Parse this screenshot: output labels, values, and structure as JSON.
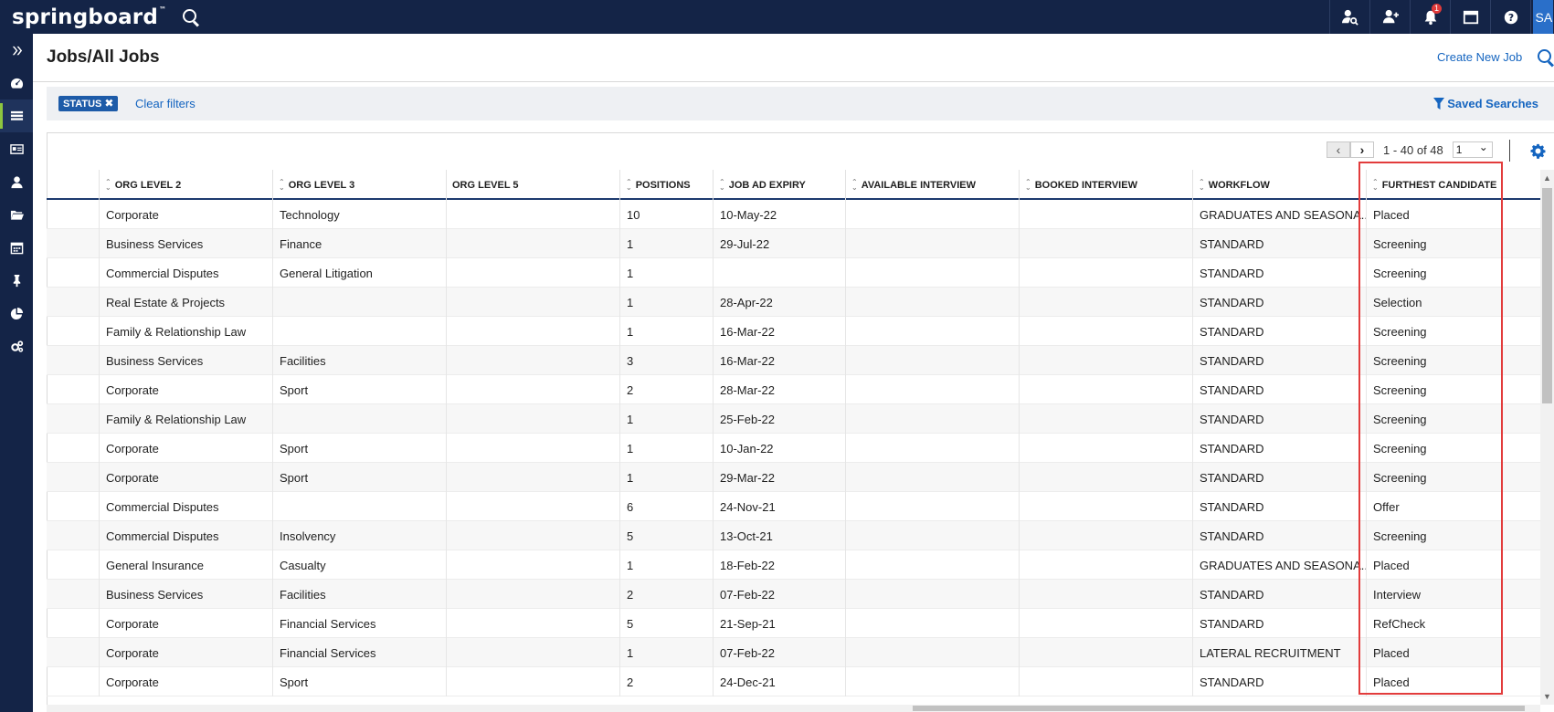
{
  "app": {
    "logo": "springboard",
    "logo_mark": "™",
    "avatar_initials": "SA",
    "notification_count": "1"
  },
  "header": {
    "title": "Jobs/All Jobs",
    "create_label": "Create New Job"
  },
  "filters": {
    "chip_label": "STATUS",
    "chip_remove": "✖",
    "clear_label": "Clear filters",
    "saved_label": "Saved Searches"
  },
  "pager": {
    "prev": "‹",
    "next": "›",
    "info": "1 - 40 of 48",
    "page": "1"
  },
  "columns": [
    "",
    "ORG LEVEL 2",
    "ORG LEVEL 3",
    "ORG LEVEL 5",
    "POSITIONS",
    "JOB AD EXPIRY",
    "AVAILABLE INTERVIEW",
    "BOOKED INTERVIEW",
    "WORKFLOW",
    "FURTHEST CANDIDATE"
  ],
  "rows": [
    [
      "",
      "Corporate",
      "Technology",
      "",
      "10",
      "10-May-22",
      "",
      "",
      "GRADUATES AND SEASONA...",
      "Placed"
    ],
    [
      "",
      "Business Services",
      "Finance",
      "",
      "1",
      "29-Jul-22",
      "",
      "",
      "STANDARD",
      "Screening"
    ],
    [
      "",
      "Commercial Disputes",
      "General Litigation",
      "",
      "1",
      "",
      "",
      "",
      "STANDARD",
      "Screening"
    ],
    [
      "",
      "Real Estate & Projects",
      "",
      "",
      "1",
      "28-Apr-22",
      "",
      "",
      "STANDARD",
      "Selection"
    ],
    [
      "",
      "Family & Relationship Law",
      "",
      "",
      "1",
      "16-Mar-22",
      "",
      "",
      "STANDARD",
      "Screening"
    ],
    [
      "",
      "Business Services",
      "Facilities",
      "",
      "3",
      "16-Mar-22",
      "",
      "",
      "STANDARD",
      "Screening"
    ],
    [
      "",
      "Corporate",
      "Sport",
      "",
      "2",
      "28-Mar-22",
      "",
      "",
      "STANDARD",
      "Screening"
    ],
    [
      "",
      "Family & Relationship Law",
      "",
      "",
      "1",
      "25-Feb-22",
      "",
      "",
      "STANDARD",
      "Screening"
    ],
    [
      "",
      "Corporate",
      "Sport",
      "",
      "1",
      "10-Jan-22",
      "",
      "",
      "STANDARD",
      "Screening"
    ],
    [
      "",
      "Corporate",
      "Sport",
      "",
      "1",
      "29-Mar-22",
      "",
      "",
      "STANDARD",
      "Screening"
    ],
    [
      "",
      "Commercial Disputes",
      "",
      "",
      "6",
      "24-Nov-21",
      "",
      "",
      "STANDARD",
      "Offer"
    ],
    [
      "",
      "Commercial Disputes",
      "Insolvency",
      "",
      "5",
      "13-Oct-21",
      "",
      "",
      "STANDARD",
      "Screening"
    ],
    [
      "",
      "General Insurance",
      "Casualty",
      "",
      "1",
      "18-Feb-22",
      "",
      "",
      "GRADUATES AND SEASONA...",
      "Placed"
    ],
    [
      "",
      "Business Services",
      "Facilities",
      "",
      "2",
      "07-Feb-22",
      "",
      "",
      "STANDARD",
      "Interview"
    ],
    [
      "",
      "Corporate",
      "Financial Services",
      "",
      "5",
      "21-Sep-21",
      "",
      "",
      "STANDARD",
      "RefCheck"
    ],
    [
      "",
      "Corporate",
      "Financial Services",
      "",
      "1",
      "07-Feb-22",
      "",
      "",
      "LATERAL RECRUITMENT",
      "Placed"
    ],
    [
      "",
      "Corporate",
      "Sport",
      "",
      "2",
      "24-Dec-21",
      "",
      "",
      "STANDARD",
      "Placed"
    ]
  ],
  "colors": {
    "navy": "#142447",
    "link": "#1565c0",
    "highlight": "#e23c3c",
    "accent": "#8dc63f"
  }
}
